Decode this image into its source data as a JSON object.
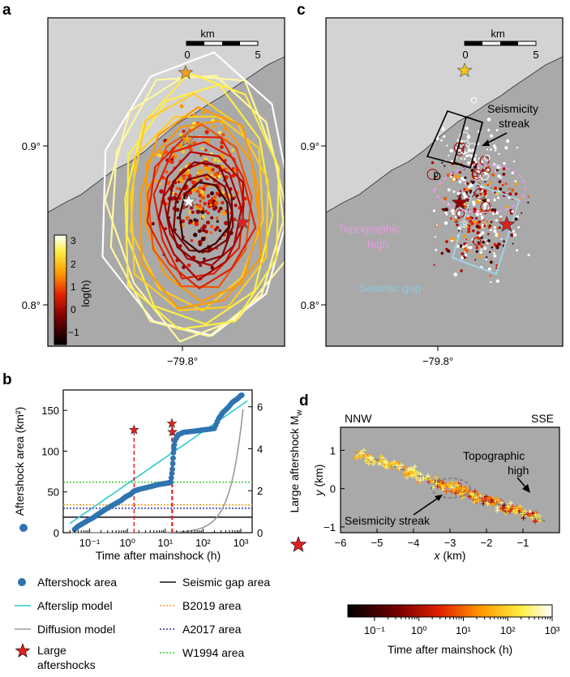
{
  "panels": {
    "a": "a",
    "b": "b",
    "c": "c",
    "d": "d"
  },
  "colors": {
    "land": "#d3d3d3",
    "sea": "#a9a9a9",
    "gap": "#9fd2e6",
    "topo": "#e59be0",
    "streak": "#000000",
    "fit_afterslip": "#2ec7d1",
    "fit_diffusion": "#9a9a9a",
    "area_dot": "#2f74b0",
    "star": "#e02020",
    "b2019": "#f0a020",
    "a2017": "#3030b0",
    "w1994": "#30cc30",
    "gapline": "#111111",
    "dashed": "#e02020"
  },
  "chart_data": [
    {
      "id": "a",
      "type": "map",
      "xtick_labels": [
        "−79.8°"
      ],
      "ytick_labels": [
        "0.9°",
        "0.8°"
      ],
      "scalebar": {
        "unit": "km",
        "labels": [
          "0",
          "5"
        ]
      },
      "colorbar": {
        "label": "log(h)",
        "ticks": [
          "3",
          "2",
          "1",
          "0",
          "−1"
        ],
        "range": [
          -1.6,
          3.2
        ]
      },
      "contour_count": 17,
      "stars": [
        {
          "name": "orange-star-north",
          "lon": -79.798,
          "lat": 0.946
        },
        {
          "name": "orange-star-mid",
          "lon": -79.797,
          "lat": 0.904
        },
        {
          "name": "white-star-mainshock",
          "lon": -79.796,
          "lat": 0.865
        },
        {
          "name": "red-star-east",
          "lon": -79.762,
          "lat": 0.852
        }
      ]
    },
    {
      "id": "c",
      "type": "map",
      "xtick_labels": [
        "−79.8°"
      ],
      "ytick_labels": [
        "0.9°",
        "0.8°"
      ],
      "scalebar": {
        "unit": "km",
        "labels": [
          "0",
          "5"
        ]
      },
      "annotations": {
        "streak": "Seismicity streak",
        "topo": "Topographic high",
        "gap": "Seismic gap",
        "d": "D"
      }
    },
    {
      "id": "b",
      "type": "scatter",
      "xlabel": "Time after mainshock (h)",
      "ylabel_left": "Aftershock area (km²)",
      "ylabel_right": "Large aftershock M",
      "ylabel_right_sub": "w",
      "xscale": "log",
      "xlim": [
        0.02,
        2000
      ],
      "ylim_left": [
        0,
        175
      ],
      "ylim_right": [
        0,
        6.8
      ],
      "xtick_labels": [
        "10⁻¹",
        "10⁰",
        "10¹",
        "10²",
        "10³"
      ],
      "ytick_left": [
        "0",
        "50",
        "100",
        "150"
      ],
      "ytick_right": [
        "0",
        "2",
        "4",
        "6"
      ],
      "reference_lines": [
        {
          "name": "W1994 area",
          "area": 62
        },
        {
          "name": "B2019 area",
          "area": 34
        },
        {
          "name": "A2017 area",
          "area": 30
        },
        {
          "name": "Seismic gap area",
          "area": 19
        }
      ],
      "area_series": [
        [
          0.04,
          4
        ],
        [
          0.05,
          8
        ],
        [
          0.07,
          12
        ],
        [
          0.09,
          15
        ],
        [
          0.12,
          18
        ],
        [
          0.16,
          22
        ],
        [
          0.2,
          25
        ],
        [
          0.25,
          28
        ],
        [
          0.35,
          32
        ],
        [
          0.5,
          36
        ],
        [
          0.7,
          40
        ],
        [
          0.9,
          44
        ],
        [
          1.2,
          47
        ],
        [
          1.5,
          51
        ],
        [
          2.0,
          53
        ],
        [
          3.0,
          55
        ],
        [
          4.5,
          57
        ],
        [
          6.5,
          59
        ],
        [
          9.0,
          60
        ],
        [
          12,
          61
        ],
        [
          14,
          62
        ],
        [
          15.5,
          78
        ],
        [
          16.5,
          98
        ],
        [
          18,
          113
        ],
        [
          22,
          120
        ],
        [
          30,
          123
        ],
        [
          45,
          124
        ],
        [
          70,
          125
        ],
        [
          100,
          126
        ],
        [
          150,
          127
        ],
        [
          200,
          128
        ],
        [
          260,
          140
        ],
        [
          330,
          147
        ],
        [
          450,
          153
        ],
        [
          600,
          160
        ],
        [
          800,
          164
        ],
        [
          1000,
          168
        ],
        [
          1100,
          169
        ]
      ],
      "large_aftershocks": [
        {
          "t": 1.5,
          "mw": 4.9
        },
        {
          "t": 15,
          "mw": 5.2
        },
        {
          "t": 15.5,
          "mw": 4.8
        }
      ]
    },
    {
      "id": "d",
      "type": "scatter",
      "xlabel": "x",
      "xlabel_unit": " (km)",
      "ylabel": "y",
      "ylabel_unit": " (km)",
      "xlim": [
        -6,
        0
      ],
      "ylim": [
        -1.15,
        1.6
      ],
      "xtick_labels": [
        "−6",
        "−5",
        "−4",
        "−3",
        "−2",
        "−1"
      ],
      "ytick_labels": [
        "1",
        "0",
        "−1"
      ],
      "direction_left": "NNW",
      "direction_right": "SSE",
      "annotation_streak": "Seismicity streak",
      "annotation_topo_1": "Topographic",
      "annotation_topo_2": "high",
      "colorbar": {
        "label": "Time after mainshock (h)",
        "ticks": [
          "10⁻¹",
          "10⁰",
          "10¹",
          "10²",
          "10³"
        ]
      }
    }
  ],
  "legend": [
    {
      "key": "area",
      "label": "Aftershock area"
    },
    {
      "key": "afterslip",
      "label": "Afterslip model"
    },
    {
      "key": "diffusion",
      "label": "Diffusion model"
    },
    {
      "key": "star",
      "label": "Large",
      "label2": "aftershocks"
    },
    {
      "key": "gap",
      "label": "Seismic gap area"
    },
    {
      "key": "b2019",
      "label": "B2019 area"
    },
    {
      "key": "a2017",
      "label": "A2017 area"
    },
    {
      "key": "w1994",
      "label": "W1994 area"
    }
  ]
}
